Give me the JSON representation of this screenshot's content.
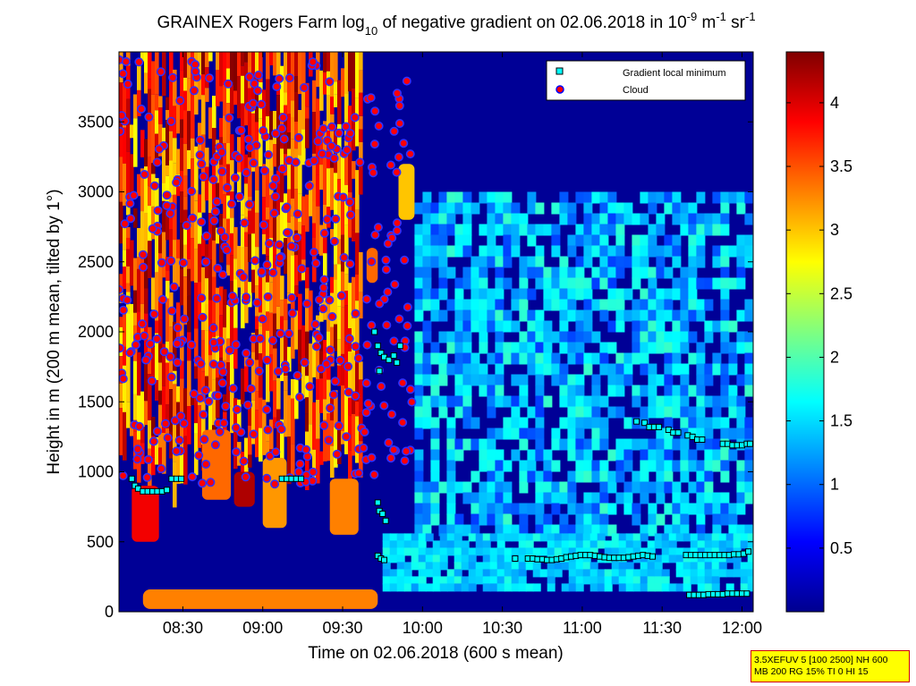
{
  "chart_data": {
    "type": "heatmap",
    "title": {
      "prefix": "GRAINEX Rogers Farm log",
      "sub": "10",
      "middle": " of negative gradient on 02.06.2018 in 10",
      "exp1": "-9",
      "unit_m": " m",
      "exp2": "-1",
      "unit_sr": " sr",
      "exp3": "-1"
    },
    "xlabel": "Time on 02.06.2018 (600 s mean)",
    "ylabel": "Height in m (200 m mean, tilted by 1°)",
    "x_range_hours": [
      8.1,
      12.07
    ],
    "y_range_m": [
      0,
      4000
    ],
    "x_ticks": [
      {
        "t": 8.5,
        "label": "08:30"
      },
      {
        "t": 9.0,
        "label": "09:00"
      },
      {
        "t": 9.5,
        "label": "09:30"
      },
      {
        "t": 10.0,
        "label": "10:00"
      },
      {
        "t": 10.5,
        "label": "10:30"
      },
      {
        "t": 11.0,
        "label": "11:00"
      },
      {
        "t": 11.5,
        "label": "11:30"
      },
      {
        "t": 12.0,
        "label": "12:00"
      }
    ],
    "y_ticks": [
      0,
      500,
      1000,
      1500,
      2000,
      2500,
      3000,
      3500
    ],
    "y_tick_labels": [
      "0",
      "500",
      "1000",
      "1500",
      "2000",
      "2500",
      "3000",
      "3500"
    ],
    "colorbar": {
      "range": [
        0,
        4.4
      ],
      "ticks": [
        0.5,
        1,
        1.5,
        2,
        2.5,
        3,
        3.5,
        4
      ],
      "tick_labels": [
        "0.5",
        "1",
        "1.5",
        "2",
        "2.5",
        "3",
        "3.5",
        "4"
      ],
      "colormap": "jet"
    },
    "legend": {
      "placement": "top-right",
      "items": [
        {
          "label": "Gradient local minimum",
          "marker": "square",
          "color": "#00ffff"
        },
        {
          "label": "Cloud",
          "marker": "circle",
          "color": "#ff0000"
        }
      ]
    },
    "gradient_local_minimum": [
      {
        "t": 8.18,
        "h": 950
      },
      {
        "t": 8.2,
        "h": 900
      },
      {
        "t": 8.22,
        "h": 880
      },
      {
        "t": 8.25,
        "h": 860
      },
      {
        "t": 8.28,
        "h": 860
      },
      {
        "t": 8.31,
        "h": 860
      },
      {
        "t": 8.34,
        "h": 860
      },
      {
        "t": 8.37,
        "h": 860
      },
      {
        "t": 8.4,
        "h": 870
      },
      {
        "t": 8.43,
        "h": 950
      },
      {
        "t": 8.46,
        "h": 950
      },
      {
        "t": 8.49,
        "h": 950
      },
      {
        "t": 9.12,
        "h": 950
      },
      {
        "t": 9.15,
        "h": 950
      },
      {
        "t": 9.18,
        "h": 950
      },
      {
        "t": 9.21,
        "h": 950
      },
      {
        "t": 9.24,
        "h": 950
      },
      {
        "t": 9.7,
        "h": 2000
      },
      {
        "t": 9.72,
        "h": 1900
      },
      {
        "t": 9.74,
        "h": 1850
      },
      {
        "t": 9.76,
        "h": 1820
      },
      {
        "t": 9.79,
        "h": 1800
      },
      {
        "t": 9.82,
        "h": 1830
      },
      {
        "t": 9.84,
        "h": 1780
      },
      {
        "t": 9.86,
        "h": 1900
      },
      {
        "t": 9.73,
        "h": 1720
      },
      {
        "t": 9.72,
        "h": 780
      },
      {
        "t": 9.73,
        "h": 720
      },
      {
        "t": 9.75,
        "h": 700
      },
      {
        "t": 9.77,
        "h": 650
      },
      {
        "t": 9.72,
        "h": 400
      },
      {
        "t": 9.74,
        "h": 380
      },
      {
        "t": 9.76,
        "h": 370
      },
      {
        "t": 10.58,
        "h": 380
      },
      {
        "t": 10.66,
        "h": 380
      },
      {
        "t": 10.69,
        "h": 380
      },
      {
        "t": 10.72,
        "h": 375
      },
      {
        "t": 10.75,
        "h": 375
      },
      {
        "t": 10.78,
        "h": 370
      },
      {
        "t": 10.81,
        "h": 370
      },
      {
        "t": 10.84,
        "h": 375
      },
      {
        "t": 10.87,
        "h": 380
      },
      {
        "t": 10.9,
        "h": 390
      },
      {
        "t": 10.93,
        "h": 395
      },
      {
        "t": 10.96,
        "h": 400
      },
      {
        "t": 10.99,
        "h": 405
      },
      {
        "t": 11.02,
        "h": 405
      },
      {
        "t": 11.05,
        "h": 405
      },
      {
        "t": 11.08,
        "h": 400
      },
      {
        "t": 11.11,
        "h": 395
      },
      {
        "t": 11.14,
        "h": 390
      },
      {
        "t": 11.17,
        "h": 385
      },
      {
        "t": 11.2,
        "h": 385
      },
      {
        "t": 11.23,
        "h": 385
      },
      {
        "t": 11.26,
        "h": 385
      },
      {
        "t": 11.29,
        "h": 390
      },
      {
        "t": 11.32,
        "h": 395
      },
      {
        "t": 11.35,
        "h": 400
      },
      {
        "t": 11.38,
        "h": 405
      },
      {
        "t": 11.41,
        "h": 400
      },
      {
        "t": 11.44,
        "h": 395
      },
      {
        "t": 11.65,
        "h": 405
      },
      {
        "t": 11.68,
        "h": 405
      },
      {
        "t": 11.71,
        "h": 405
      },
      {
        "t": 11.74,
        "h": 405
      },
      {
        "t": 11.77,
        "h": 405
      },
      {
        "t": 11.8,
        "h": 405
      },
      {
        "t": 11.83,
        "h": 405
      },
      {
        "t": 11.86,
        "h": 405
      },
      {
        "t": 11.89,
        "h": 405
      },
      {
        "t": 11.92,
        "h": 405
      },
      {
        "t": 11.95,
        "h": 410
      },
      {
        "t": 11.98,
        "h": 410
      },
      {
        "t": 12.01,
        "h": 415
      },
      {
        "t": 12.04,
        "h": 430
      },
      {
        "t": 11.67,
        "h": 120
      },
      {
        "t": 11.7,
        "h": 120
      },
      {
        "t": 11.73,
        "h": 120
      },
      {
        "t": 11.76,
        "h": 120
      },
      {
        "t": 11.79,
        "h": 125
      },
      {
        "t": 11.82,
        "h": 125
      },
      {
        "t": 11.85,
        "h": 125
      },
      {
        "t": 11.88,
        "h": 125
      },
      {
        "t": 11.91,
        "h": 130
      },
      {
        "t": 11.94,
        "h": 130
      },
      {
        "t": 11.97,
        "h": 130
      },
      {
        "t": 12.0,
        "h": 130
      },
      {
        "t": 12.03,
        "h": 130
      },
      {
        "t": 11.34,
        "h": 1360
      },
      {
        "t": 11.39,
        "h": 1350
      },
      {
        "t": 11.42,
        "h": 1320
      },
      {
        "t": 11.45,
        "h": 1320
      },
      {
        "t": 11.48,
        "h": 1320
      },
      {
        "t": 11.54,
        "h": 1300
      },
      {
        "t": 11.57,
        "h": 1280
      },
      {
        "t": 11.6,
        "h": 1280
      },
      {
        "t": 11.66,
        "h": 1260
      },
      {
        "t": 11.69,
        "h": 1250
      },
      {
        "t": 11.72,
        "h": 1230
      },
      {
        "t": 11.75,
        "h": 1230
      },
      {
        "t": 11.88,
        "h": 1200
      },
      {
        "t": 11.91,
        "h": 1200
      },
      {
        "t": 11.94,
        "h": 1190
      },
      {
        "t": 11.97,
        "h": 1190
      },
      {
        "t": 12.0,
        "h": 1190
      },
      {
        "t": 12.03,
        "h": 1200
      },
      {
        "t": 12.05,
        "h": 1200
      }
    ],
    "cloud_region": {
      "t_start": 8.1,
      "t_end": 9.95,
      "h_min": 900,
      "h_max": 3950,
      "count": 420
    },
    "raster_features": {
      "surface_layer": {
        "t": [
          8.25,
          9.72
        ],
        "h": [
          20,
          160
        ],
        "value": 3.3
      },
      "upper_red_region": {
        "t": [
          8.1,
          9.62
        ],
        "h": [
          1000,
          4000
        ],
        "value_range": [
          2.7,
          4.4
        ]
      },
      "boundary_blocks": [
        {
          "t": [
            8.18,
            8.35
          ],
          "h": [
            500,
            900
          ],
          "value": 3.9
        },
        {
          "t": [
            8.62,
            8.8
          ],
          "h": [
            800,
            1300
          ],
          "value": 3.4
        },
        {
          "t": [
            8.82,
            8.95
          ],
          "h": [
            750,
            1000
          ],
          "value": 4.2
        },
        {
          "t": [
            9.0,
            9.15
          ],
          "h": [
            600,
            1100
          ],
          "value": 3.2
        },
        {
          "t": [
            9.42,
            9.6
          ],
          "h": [
            550,
            950
          ],
          "value": 3.3
        },
        {
          "t": [
            9.65,
            9.72
          ],
          "h": [
            2350,
            2600
          ],
          "value": 3.4
        },
        {
          "t": [
            9.85,
            9.95
          ],
          "h": [
            2800,
            3200
          ],
          "value": 3.0
        }
      ],
      "afternoon_haze": {
        "t": [
          9.95,
          12.07
        ],
        "h": [
          600,
          3000
        ],
        "value_range": [
          0.8,
          1.9
        ]
      },
      "mixed_layer": {
        "t": [
          9.75,
          12.07
        ],
        "h": [
          180,
          560
        ],
        "value_range": [
          1.2,
          1.8
        ]
      }
    }
  },
  "stamp": {
    "line1": "3.5XEFUV 5 [100 2500] NH 600",
    "line2": "MB 200 RG 15% TI 0 HI 15"
  }
}
